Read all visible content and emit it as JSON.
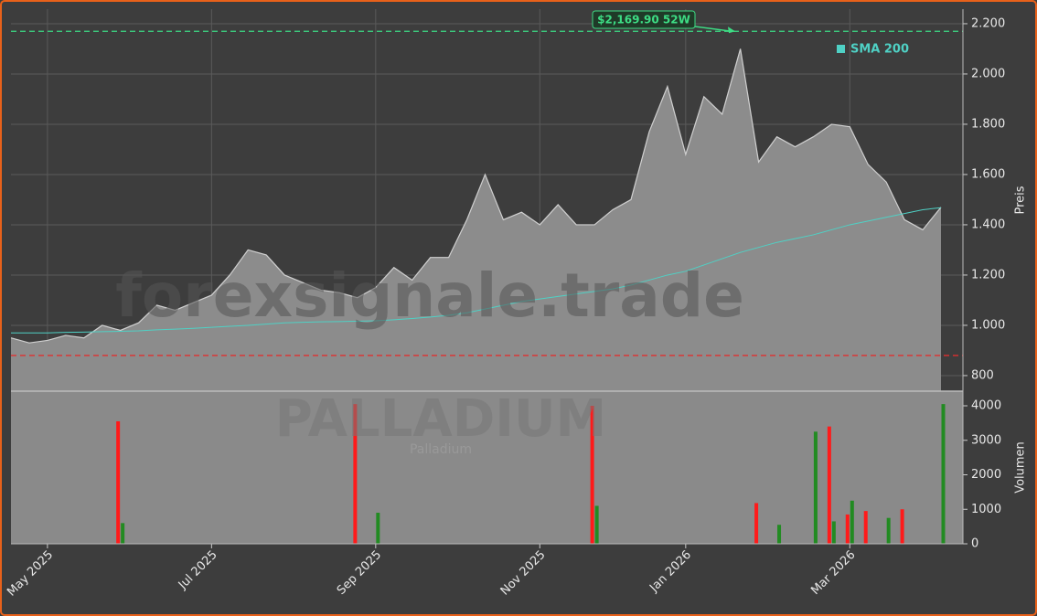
{
  "chart_data": [
    {
      "type": "area",
      "values": [
        950,
        930,
        940,
        960,
        950,
        1000,
        980,
        1010,
        1080,
        1060,
        1090,
        1120,
        1200,
        1300,
        1280,
        1200,
        1170,
        1140,
        1130,
        1110,
        1150,
        1230,
        1180,
        1270,
        1270,
        1420,
        1600,
        1420,
        1450,
        1400,
        1480,
        1400,
        1400,
        1460,
        1500,
        1770,
        1950,
        1680,
        1910,
        1840,
        2100,
        1650,
        1750,
        1710,
        1750,
        1800,
        1790,
        1640,
        1570,
        1420,
        1380,
        1470
      ],
      "color": "#8c8c8c",
      "line_color": "#d0d0d0",
      "series": [
        {
          "name": "SMA 200",
          "color": "#4fd1c5",
          "values": [
            970,
            970,
            970,
            972,
            973,
            975,
            976,
            978,
            982,
            985,
            988,
            992,
            996,
            1000,
            1005,
            1010,
            1012,
            1014,
            1015,
            1016,
            1018,
            1022,
            1027,
            1033,
            1040,
            1050,
            1065,
            1080,
            1095,
            1105,
            1115,
            1125,
            1135,
            1145,
            1160,
            1180,
            1200,
            1215,
            1240,
            1265,
            1290,
            1310,
            1330,
            1345,
            1360,
            1380,
            1400,
            1415,
            1430,
            1445,
            1460,
            1468
          ]
        }
      ],
      "ylim": [
        738,
        2258
      ],
      "yticks": [
        800,
        {
          "value": 1000,
          "label": "1.000"
        },
        {
          "value": 1200,
          "label": "1.200"
        },
        {
          "value": 1400,
          "label": "1.400"
        },
        {
          "value": 1600,
          "label": "1.600"
        },
        {
          "value": 1800,
          "label": "1.800"
        },
        {
          "value": 2000,
          "label": "2.000"
        },
        {
          "value": 2200,
          "label": "2.200"
        }
      ],
      "ylabel": "Preis",
      "grid": true,
      "legend": "top-right",
      "high_line": {
        "value": 2169.9,
        "label": "$2,169.90 52W",
        "color": "#3ddc84"
      },
      "low_line": {
        "value": 880,
        "color": "#e03030"
      }
    },
    {
      "type": "bar",
      "categories": [
        null,
        null,
        "May 2025",
        null,
        null,
        null,
        null,
        null,
        null,
        null,
        null,
        "Jul 2025",
        null,
        null,
        null,
        null,
        null,
        null,
        null,
        null,
        "Sep 2025",
        null,
        null,
        null,
        null,
        null,
        null,
        null,
        null,
        "Nov 2025",
        null,
        null,
        null,
        null,
        null,
        null,
        null,
        "Jan 2026",
        null,
        null,
        null,
        null,
        null,
        null,
        null,
        null,
        "Mar 2026",
        null,
        null,
        null,
        null,
        null
      ],
      "series": [
        {
          "color": "#ff1a1a",
          "values": [
            0,
            0,
            0,
            0,
            0,
            0,
            3550,
            0,
            0,
            0,
            0,
            0,
            0,
            0,
            0,
            0,
            0,
            0,
            0,
            4050,
            0,
            0,
            0,
            0,
            0,
            0,
            0,
            0,
            0,
            0,
            0,
            0,
            4000,
            0,
            0,
            0,
            0,
            0,
            0,
            0,
            0,
            1180,
            0,
            0,
            0,
            3400,
            850,
            950,
            0,
            1000,
            0,
            0
          ]
        },
        {
          "color": "#228b22",
          "values": [
            0,
            0,
            0,
            0,
            0,
            0,
            600,
            0,
            0,
            0,
            0,
            0,
            0,
            0,
            0,
            0,
            0,
            0,
            0,
            0,
            900,
            0,
            0,
            0,
            0,
            0,
            0,
            0,
            0,
            0,
            0,
            0,
            1100,
            0,
            0,
            0,
            0,
            0,
            0,
            0,
            0,
            0,
            550,
            0,
            3250,
            650,
            1250,
            0,
            750,
            0,
            0,
            4050
          ]
        }
      ],
      "ylim": [
        0,
        4424
      ],
      "yticks": [
        0,
        1000,
        2000,
        3000,
        4000
      ],
      "ylabel": "Volumen"
    }
  ],
  "watermark": {
    "site": "forexsignale.trade",
    "name": "PALLADIUM",
    "subtitle": "Palladium"
  }
}
